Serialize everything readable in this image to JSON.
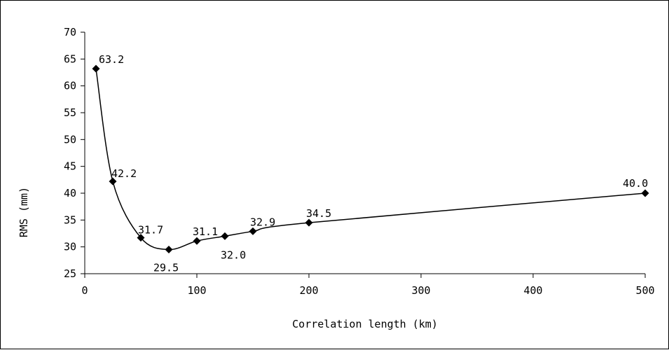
{
  "chart_data": {
    "type": "line",
    "title": "",
    "xlabel": "Correlation length (km)",
    "ylabel": "RMS (mm)",
    "xlim": [
      0,
      500
    ],
    "ylim": [
      25,
      70
    ],
    "xticks": [
      0,
      100,
      200,
      300,
      400,
      500
    ],
    "yticks": [
      25,
      30,
      35,
      40,
      45,
      50,
      55,
      60,
      65,
      70
    ],
    "grid": false,
    "legend": "none",
    "colors": {
      "line": "#000000",
      "marker": "#000000",
      "border": "#000000"
    },
    "marker_shape": "diamond",
    "points": [
      {
        "x": 10,
        "y": 63.2,
        "label": "63.2"
      },
      {
        "x": 25,
        "y": 42.2,
        "label": "42.2"
      },
      {
        "x": 50,
        "y": 31.7,
        "label": "31.7"
      },
      {
        "x": 75,
        "y": 29.5,
        "label": "29.5"
      },
      {
        "x": 100,
        "y": 31.1,
        "label": "31.1"
      },
      {
        "x": 125,
        "y": 32.0,
        "label": "32.0"
      },
      {
        "x": 150,
        "y": 32.9,
        "label": "32.9"
      },
      {
        "x": 200,
        "y": 34.5,
        "label": "34.5"
      },
      {
        "x": 500,
        "y": 40.0,
        "label": "40.0"
      }
    ]
  }
}
